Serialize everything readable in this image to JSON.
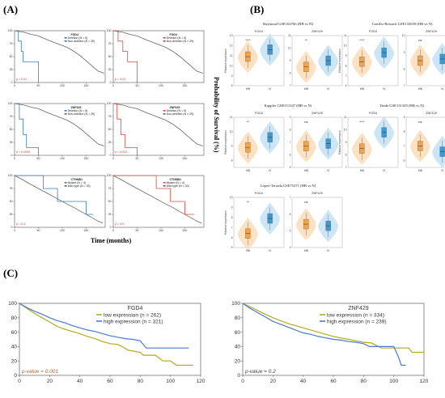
{
  "panels": {
    "A": {
      "label": "(A)",
      "xlabel": "Time (months)",
      "ylabel": "Probability of Survival (%)"
    },
    "B": {
      "label": "(B)"
    },
    "C": {
      "label": "(C)"
    }
  },
  "km_small": [
    {
      "title": "FGD4",
      "pvalue": "p = 0.01",
      "leg": [
        "Deletion (N = 5)",
        "Non-deletion (N = 29)"
      ],
      "color": "#3a7dbf",
      "a": [
        [
          0,
          100
        ],
        [
          8,
          100
        ],
        [
          8,
          80
        ],
        [
          14,
          80
        ],
        [
          14,
          60
        ],
        [
          18,
          60
        ],
        [
          18,
          40
        ],
        [
          50,
          40
        ],
        [
          50,
          0
        ]
      ],
      "b": [
        [
          0,
          100
        ],
        [
          20,
          97
        ],
        [
          35,
          93
        ],
        [
          50,
          90
        ],
        [
          70,
          82
        ],
        [
          90,
          75
        ],
        [
          110,
          68
        ],
        [
          125,
          60
        ],
        [
          140,
          50
        ],
        [
          155,
          38
        ],
        [
          165,
          30
        ],
        [
          175,
          22
        ],
        [
          188,
          18
        ]
      ]
    },
    {
      "title": "FGD4",
      "pvalue": "p = 0.01",
      "leg": [
        "Deletion (N = 5)",
        "Non-deletion (N = 29)"
      ],
      "color": "#e0473c",
      "a": [
        [
          0,
          100
        ],
        [
          10,
          100
        ],
        [
          10,
          80
        ],
        [
          20,
          80
        ],
        [
          20,
          60
        ],
        [
          30,
          60
        ],
        [
          30,
          40
        ],
        [
          50,
          40
        ],
        [
          50,
          0
        ]
      ],
      "b": [
        [
          0,
          100
        ],
        [
          20,
          97
        ],
        [
          35,
          93
        ],
        [
          50,
          90
        ],
        [
          70,
          82
        ],
        [
          90,
          75
        ],
        [
          110,
          68
        ],
        [
          125,
          60
        ],
        [
          140,
          50
        ],
        [
          155,
          38
        ],
        [
          165,
          30
        ],
        [
          175,
          22
        ],
        [
          188,
          18
        ]
      ]
    },
    {
      "title": "ZNF429",
      "pvalue": "p = 0.0009",
      "leg": [
        "Deletion (N = 5)",
        "Non-deletion (N = 29)"
      ],
      "color": "#3a7dbf",
      "a": [
        [
          0,
          100
        ],
        [
          10,
          100
        ],
        [
          10,
          70
        ],
        [
          18,
          70
        ],
        [
          18,
          40
        ],
        [
          25,
          40
        ],
        [
          25,
          15
        ],
        [
          50,
          15
        ],
        [
          50,
          0
        ]
      ],
      "b": [
        [
          0,
          100
        ],
        [
          20,
          97
        ],
        [
          35,
          93
        ],
        [
          50,
          90
        ],
        [
          70,
          82
        ],
        [
          90,
          75
        ],
        [
          110,
          68
        ],
        [
          125,
          60
        ],
        [
          140,
          50
        ],
        [
          155,
          38
        ],
        [
          165,
          30
        ],
        [
          175,
          22
        ],
        [
          188,
          18
        ]
      ]
    },
    {
      "title": "ZNF429",
      "pvalue": "p = 0.001",
      "leg": [
        "Deletion (N = 5)",
        "Non-deletion (N = 29)"
      ],
      "color": "#e0473c",
      "a": [
        [
          0,
          100
        ],
        [
          8,
          100
        ],
        [
          8,
          70
        ],
        [
          16,
          70
        ],
        [
          16,
          40
        ],
        [
          25,
          40
        ],
        [
          25,
          15
        ],
        [
          50,
          15
        ],
        [
          50,
          0
        ]
      ],
      "b": [
        [
          0,
          100
        ],
        [
          20,
          97
        ],
        [
          35,
          93
        ],
        [
          50,
          90
        ],
        [
          70,
          82
        ],
        [
          90,
          75
        ],
        [
          110,
          68
        ],
        [
          125,
          60
        ],
        [
          140,
          50
        ],
        [
          155,
          38
        ],
        [
          165,
          30
        ],
        [
          175,
          22
        ],
        [
          188,
          18
        ]
      ]
    },
    {
      "title": "CTNNB1",
      "pvalue": "p = 0.4",
      "leg": [
        "Mutant (N = 4)",
        "Wild type (N = 30)"
      ],
      "color": "#3a7dbf",
      "a": [
        [
          0,
          100
        ],
        [
          60,
          100
        ],
        [
          60,
          75
        ],
        [
          90,
          75
        ],
        [
          90,
          50
        ],
        [
          150,
          50
        ],
        [
          150,
          25
        ],
        [
          165,
          25
        ]
      ],
      "b": [
        [
          0,
          100
        ],
        [
          15,
          93
        ],
        [
          30,
          85
        ],
        [
          50,
          75
        ],
        [
          70,
          65
        ],
        [
          90,
          55
        ],
        [
          110,
          45
        ],
        [
          125,
          38
        ],
        [
          140,
          30
        ],
        [
          160,
          20
        ],
        [
          175,
          12
        ],
        [
          185,
          8
        ]
      ]
    },
    {
      "title": "CTNNB1",
      "pvalue": "p = 0.5",
      "leg": [
        "Mutant (N = 4)",
        "Wild type (N = 30)"
      ],
      "color": "#e0473c",
      "a": [
        [
          0,
          100
        ],
        [
          90,
          100
        ],
        [
          90,
          75
        ],
        [
          120,
          75
        ],
        [
          120,
          50
        ],
        [
          150,
          50
        ],
        [
          150,
          25
        ],
        [
          170,
          25
        ]
      ],
      "b": [
        [
          0,
          100
        ],
        [
          15,
          93
        ],
        [
          30,
          85
        ],
        [
          50,
          75
        ],
        [
          70,
          65
        ],
        [
          90,
          55
        ],
        [
          110,
          45
        ],
        [
          125,
          38
        ],
        [
          140,
          30
        ],
        [
          160,
          20
        ],
        [
          175,
          12
        ],
        [
          185,
          8
        ]
      ]
    }
  ],
  "violin_groups": [
    {
      "title": "Raymond GSE104766 (HB vs N)",
      "plots": [
        {
          "gene": "FGD4",
          "sig": "****",
          "hb": 10.9,
          "n": 11.6,
          "ymin": 8,
          "ymax": 13
        },
        {
          "gene": "ZNF429",
          "sig": "**",
          "hb": 8.5,
          "n": 9.0,
          "ymin": 7,
          "ymax": 11
        }
      ]
    },
    {
      "title": "Carrillo-Reixach GSE133039 (HB vs N)",
      "plots": [
        {
          "gene": "FGD4",
          "sig": "****",
          "hb": 8.4,
          "n": 9.3,
          "ymin": 6,
          "ymax": 11
        },
        {
          "gene": "ZNF429",
          "sig": "ns",
          "hb": 8.5,
          "n": 8.6,
          "ymin": 7,
          "ymax": 10
        }
      ]
    },
    {
      "title": "Kappler GSE151347 (HB vs N)",
      "plots": [
        {
          "gene": "FGD4",
          "sig": "**",
          "hb": 8.9,
          "n": 9.6,
          "ymin": 7.5,
          "ymax": 11
        },
        {
          "gene": "ZNF429",
          "sig": "ns",
          "hb": 6.7,
          "n": 6.9,
          "ymin": 5,
          "ymax": 9
        }
      ]
    },
    {
      "title": "Ikeda GSE131329 (HB vs N)",
      "plots": [
        {
          "gene": "FGD4",
          "sig": "****",
          "hb": 8.5,
          "n": 9.8,
          "ymin": 7,
          "ymax": 11
        },
        {
          "gene": "ZNF429",
          "sig": "ns",
          "hb": 7.0,
          "n": 6.6,
          "ymin": 5.5,
          "ymax": 9
        }
      ]
    },
    {
      "title": "López-Terrada GSE75271 (HB vs N)",
      "plots": [
        {
          "gene": "FGD4",
          "sig": "**",
          "hb": 6.4,
          "n": 7.9,
          "ymin": 5,
          "ymax": 10
        },
        {
          "gene": "ZNF429",
          "sig": "ns",
          "hb": 5.4,
          "n": 5.3,
          "ymin": 4,
          "ymax": 7
        }
      ]
    }
  ],
  "violin_axis": {
    "ylabel": "Relative expression",
    "cat_hb": "HB",
    "cat_n": "N"
  },
  "chart_data": [
    {
      "type": "line",
      "title": "FGD4",
      "xlim": [
        0,
        120
      ],
      "ylim": [
        0,
        100
      ],
      "xticks": [
        "0",
        "20",
        "40",
        "60",
        "80",
        "100",
        "120"
      ],
      "yticks": [
        "0",
        "20",
        "40",
        "60",
        "80",
        "100"
      ],
      "annotation": "p-value = 0.001",
      "series": [
        {
          "name": "low expression (n = 262)",
          "color": "#b5aa1a",
          "points": [
            [
              0,
              100
            ],
            [
              5,
              93
            ],
            [
              10,
              86
            ],
            [
              15,
              80
            ],
            [
              20,
              74
            ],
            [
              25,
              68
            ],
            [
              30,
              64
            ],
            [
              35,
              61
            ],
            [
              40,
              58
            ],
            [
              45,
              54
            ],
            [
              50,
              51
            ],
            [
              55,
              47
            ],
            [
              60,
              44
            ],
            [
              65,
              43
            ],
            [
              68,
              40
            ],
            [
              72,
              35
            ],
            [
              80,
              32
            ],
            [
              82,
              28
            ],
            [
              90,
              28
            ],
            [
              95,
              20
            ],
            [
              100,
              20
            ],
            [
              104,
              14
            ],
            [
              115,
              14
            ]
          ]
        },
        {
          "name": "high expression (n = 321)",
          "color": "#4a7ad6",
          "points": [
            [
              0,
              100
            ],
            [
              5,
              94
            ],
            [
              10,
              89
            ],
            [
              15,
              85
            ],
            [
              20,
              80
            ],
            [
              25,
              76
            ],
            [
              30,
              73
            ],
            [
              35,
              69
            ],
            [
              40,
              66
            ],
            [
              45,
              63
            ],
            [
              50,
              61
            ],
            [
              55,
              58
            ],
            [
              60,
              55
            ],
            [
              65,
              53
            ],
            [
              70,
              51
            ],
            [
              75,
              50
            ],
            [
              80,
              48
            ],
            [
              84,
              38
            ],
            [
              100,
              38
            ],
            [
              112,
              38
            ]
          ]
        }
      ]
    },
    {
      "type": "line",
      "title": "ZNF429",
      "xlim": [
        0,
        120
      ],
      "ylim": [
        0,
        100
      ],
      "xticks": [
        "0",
        "20",
        "40",
        "60",
        "80",
        "100",
        "120"
      ],
      "yticks": [
        "0",
        "20",
        "40",
        "60",
        "80",
        "100"
      ],
      "annotation": "p-value = 0.2",
      "series": [
        {
          "name": "low expression (n = 334)",
          "color": "#b5aa1a",
          "points": [
            [
              0,
              100
            ],
            [
              5,
              95
            ],
            [
              10,
              90
            ],
            [
              15,
              85
            ],
            [
              20,
              80
            ],
            [
              25,
              76
            ],
            [
              30,
              72
            ],
            [
              35,
              69
            ],
            [
              40,
              66
            ],
            [
              45,
              63
            ],
            [
              50,
              60
            ],
            [
              55,
              57
            ],
            [
              60,
              54
            ],
            [
              65,
              52
            ],
            [
              70,
              50
            ],
            [
              75,
              48
            ],
            [
              80,
              46
            ],
            [
              85,
              45
            ],
            [
              92,
              38
            ],
            [
              110,
              38
            ],
            [
              112,
              32
            ],
            [
              120,
              32
            ]
          ]
        },
        {
          "name": "high expression (n = 239)",
          "color": "#4a7ad6",
          "points": [
            [
              0,
              100
            ],
            [
              5,
              93
            ],
            [
              10,
              87
            ],
            [
              15,
              81
            ],
            [
              20,
              75
            ],
            [
              25,
              71
            ],
            [
              30,
              67
            ],
            [
              35,
              63
            ],
            [
              40,
              59
            ],
            [
              45,
              57
            ],
            [
              50,
              54
            ],
            [
              55,
              52
            ],
            [
              60,
              50
            ],
            [
              65,
              49
            ],
            [
              70,
              47
            ],
            [
              75,
              46
            ],
            [
              80,
              44
            ],
            [
              84,
              40
            ],
            [
              100,
              40
            ],
            [
              103,
              26
            ],
            [
              105,
              14
            ],
            [
              108,
              14
            ]
          ]
        }
      ]
    }
  ]
}
